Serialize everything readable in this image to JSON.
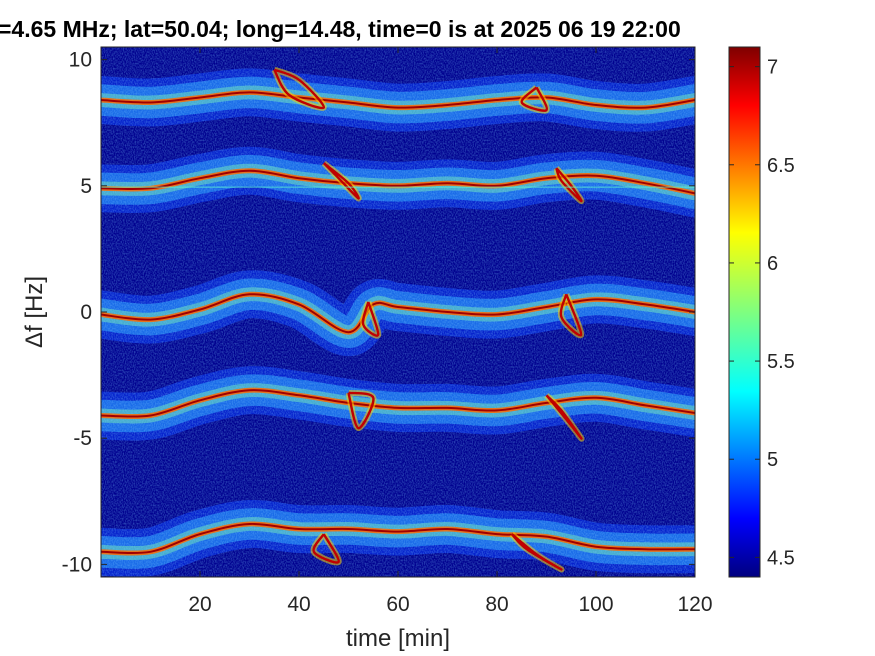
{
  "chart_data": {
    "type": "heatmap",
    "title": "=4.65 MHz;  lat=50.04; long=14.48, time=0 is at 2025 06 19 22:00",
    "xlabel": "time [min]",
    "ylabel": "Δf [Hz]",
    "xlim": [
      0,
      120
    ],
    "ylim": [
      -10.5,
      10.5
    ],
    "xticks": [
      20,
      40,
      60,
      80,
      100,
      120
    ],
    "xtick_labels": [
      "20",
      "40",
      "60",
      "80",
      "100",
      "120"
    ],
    "yticks": [
      -10,
      -5,
      0,
      5,
      10
    ],
    "ytick_labels": [
      "-10",
      "-5",
      "0",
      "5",
      "10"
    ],
    "colorbar": {
      "colormap": "jet",
      "range": [
        4.4,
        7.1
      ],
      "ticks": [
        4.5,
        5,
        5.5,
        6,
        6.5,
        7
      ],
      "tick_labels": [
        "4.5",
        "5",
        "5.5",
        "6",
        "6.5",
        "7"
      ]
    },
    "background_color": "#00008f",
    "traces": [
      {
        "name": "",
        "points": [
          [
            0,
            8.4
          ],
          [
            10,
            8.3
          ],
          [
            20,
            8.5
          ],
          [
            30,
            8.7
          ],
          [
            40,
            8.5
          ],
          [
            50,
            8.3
          ],
          [
            60,
            8.1
          ],
          [
            70,
            8.2
          ],
          [
            80,
            8.4
          ],
          [
            90,
            8.5
          ],
          [
            100,
            8.2
          ],
          [
            110,
            8.1
          ],
          [
            120,
            8.4
          ]
        ]
      },
      {
        "name": "",
        "points": [
          [
            0,
            4.9
          ],
          [
            10,
            4.9
          ],
          [
            20,
            5.3
          ],
          [
            30,
            5.6
          ],
          [
            40,
            5.3
          ],
          [
            50,
            5.1
          ],
          [
            60,
            5.0
          ],
          [
            70,
            5.1
          ],
          [
            80,
            5.0
          ],
          [
            90,
            5.3
          ],
          [
            100,
            5.4
          ],
          [
            110,
            5.1
          ],
          [
            120,
            4.7
          ]
        ]
      },
      {
        "name": "",
        "points": [
          [
            0,
            -0.1
          ],
          [
            10,
            -0.3
          ],
          [
            20,
            0.1
          ],
          [
            30,
            0.7
          ],
          [
            40,
            0.3
          ],
          [
            50,
            -0.8
          ],
          [
            55,
            0.3
          ],
          [
            60,
            0.2
          ],
          [
            70,
            0.0
          ],
          [
            80,
            -0.1
          ],
          [
            90,
            0.2
          ],
          [
            100,
            0.5
          ],
          [
            110,
            0.3
          ],
          [
            120,
            0.0
          ]
        ]
      },
      {
        "name": "",
        "points": [
          [
            0,
            -4.1
          ],
          [
            10,
            -4.1
          ],
          [
            20,
            -3.5
          ],
          [
            30,
            -3.1
          ],
          [
            40,
            -3.3
          ],
          [
            50,
            -3.6
          ],
          [
            60,
            -3.8
          ],
          [
            70,
            -3.8
          ],
          [
            80,
            -3.9
          ],
          [
            90,
            -3.6
          ],
          [
            100,
            -3.4
          ],
          [
            110,
            -3.7
          ],
          [
            120,
            -4.0
          ]
        ]
      },
      {
        "name": "",
        "points": [
          [
            0,
            -9.5
          ],
          [
            10,
            -9.5
          ],
          [
            20,
            -8.8
          ],
          [
            30,
            -8.4
          ],
          [
            40,
            -8.6
          ],
          [
            50,
            -8.6
          ],
          [
            60,
            -8.7
          ],
          [
            70,
            -8.6
          ],
          [
            80,
            -8.8
          ],
          [
            90,
            -8.9
          ],
          [
            100,
            -9.3
          ],
          [
            110,
            -9.4
          ],
          [
            120,
            -9.4
          ]
        ]
      }
    ],
    "loops": [
      {
        "points": [
          [
            35,
            9.6
          ],
          [
            40,
            9.2
          ],
          [
            45,
            8.1
          ],
          [
            38,
            8.6
          ],
          [
            35,
            9.6
          ]
        ]
      },
      {
        "points": [
          [
            88,
            8.9
          ],
          [
            85,
            8.3
          ],
          [
            90,
            8.0
          ],
          [
            88,
            8.9
          ]
        ]
      },
      {
        "points": [
          [
            45,
            5.9
          ],
          [
            50,
            5.1
          ],
          [
            52,
            4.5
          ],
          [
            48,
            5.3
          ],
          [
            45,
            5.9
          ]
        ]
      },
      {
        "points": [
          [
            92,
            5.7
          ],
          [
            95,
            5.0
          ],
          [
            97,
            4.4
          ],
          [
            93,
            5.2
          ],
          [
            92,
            5.7
          ]
        ]
      },
      {
        "points": [
          [
            54,
            0.4
          ],
          [
            56,
            -0.9
          ],
          [
            53,
            -0.5
          ],
          [
            54,
            0.4
          ]
        ]
      },
      {
        "points": [
          [
            94,
            0.7
          ],
          [
            97,
            -0.9
          ],
          [
            93,
            -0.2
          ],
          [
            94,
            0.7
          ]
        ]
      },
      {
        "points": [
          [
            50,
            -3.2
          ],
          [
            52,
            -4.6
          ],
          [
            55,
            -3.4
          ],
          [
            50,
            -3.2
          ]
        ]
      },
      {
        "points": [
          [
            90,
            -3.3
          ],
          [
            95,
            -4.5
          ],
          [
            97,
            -5.0
          ],
          [
            93,
            -3.9
          ],
          [
            90,
            -3.3
          ]
        ]
      },
      {
        "points": [
          [
            45,
            -8.8
          ],
          [
            48,
            -9.9
          ],
          [
            43,
            -9.5
          ],
          [
            45,
            -8.8
          ]
        ]
      },
      {
        "points": [
          [
            83,
            -8.8
          ],
          [
            88,
            -9.6
          ],
          [
            93,
            -10.2
          ],
          [
            86,
            -9.4
          ],
          [
            83,
            -8.8
          ]
        ]
      }
    ]
  }
}
